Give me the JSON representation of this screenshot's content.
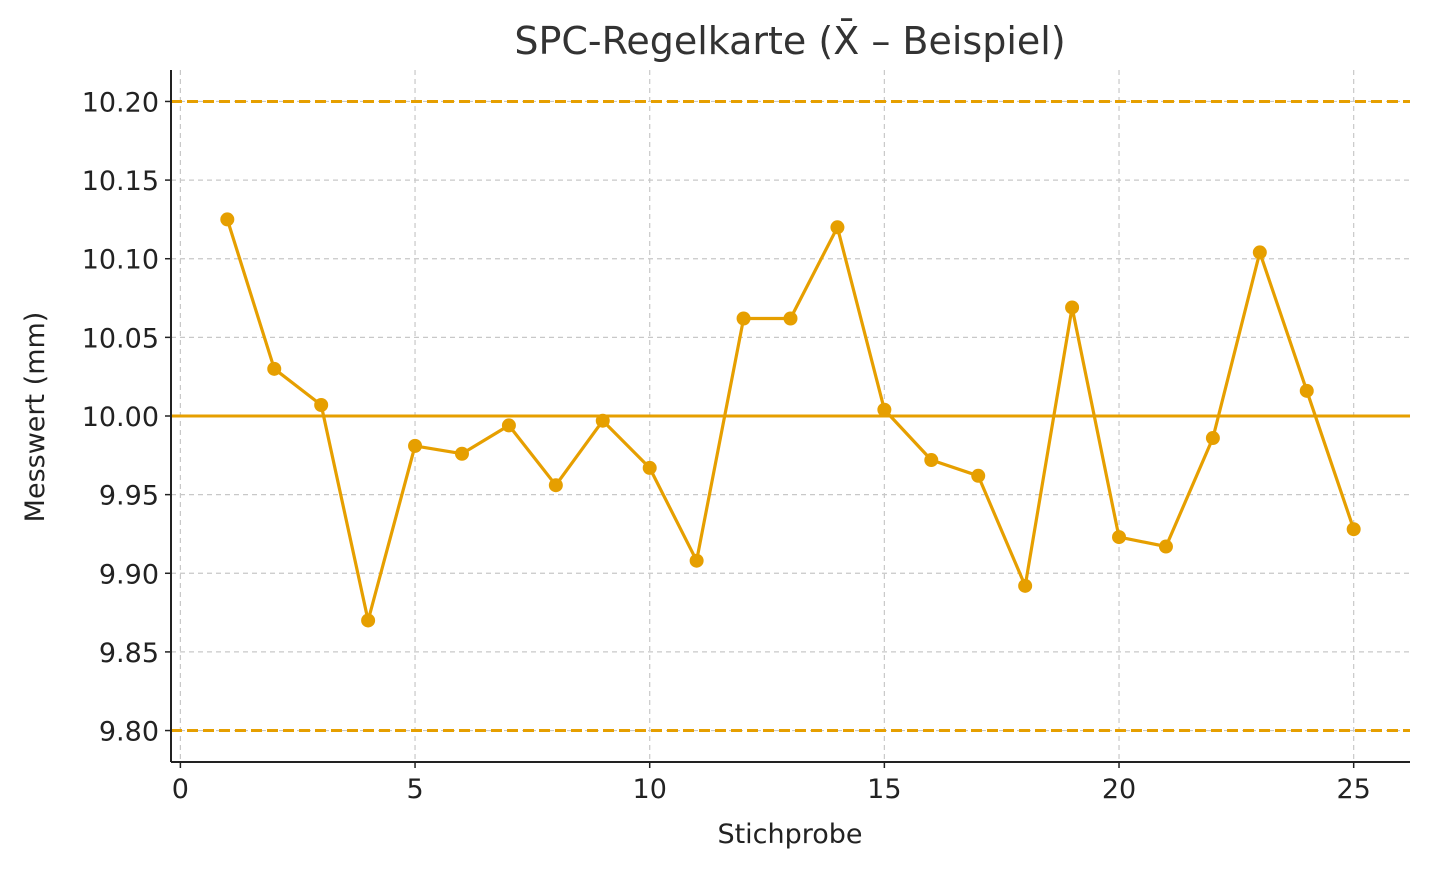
{
  "chart_data": {
    "type": "line",
    "title": "SPC-Regelkarte (X̄ – Beispiel)",
    "xlabel": "Stichprobe",
    "ylabel": "Messwert (mm)",
    "xlim": [
      -0.2,
      26.2
    ],
    "ylim": [
      9.78,
      10.22
    ],
    "xticks": [
      0,
      5,
      10,
      15,
      20,
      25
    ],
    "yticks": [
      9.8,
      9.85,
      9.9,
      9.95,
      10.0,
      10.05,
      10.1,
      10.15,
      10.2
    ],
    "ytick_labels": [
      "9.80",
      "9.85",
      "9.90",
      "9.95",
      "10.00",
      "10.05",
      "10.10",
      "10.15",
      "10.20"
    ],
    "grid": true,
    "line_color": "#E69F00",
    "center_line": 10.0,
    "upper_control_limit": 10.2,
    "lower_control_limit": 9.8,
    "x": [
      1,
      2,
      3,
      4,
      5,
      6,
      7,
      8,
      9,
      10,
      11,
      12,
      13,
      14,
      15,
      16,
      17,
      18,
      19,
      20,
      21,
      22,
      23,
      24,
      25
    ],
    "y": [
      10.125,
      10.03,
      10.007,
      9.87,
      9.981,
      9.976,
      9.994,
      9.956,
      9.997,
      9.967,
      9.908,
      10.062,
      10.062,
      10.12,
      10.004,
      9.972,
      9.962,
      9.892,
      10.069,
      9.923,
      9.917,
      9.986,
      10.104,
      10.016,
      9.928
    ]
  }
}
